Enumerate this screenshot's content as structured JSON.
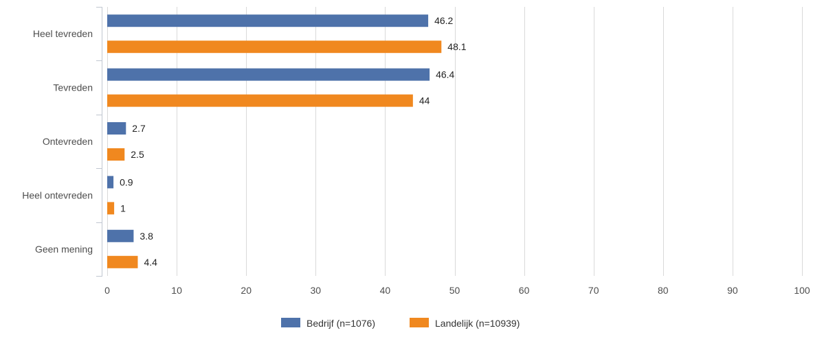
{
  "chart_data": {
    "type": "bar",
    "orientation": "horizontal",
    "categories": [
      "Heel tevreden",
      "Tevreden",
      "Ontevreden",
      "Heel ontevreden",
      "Geen mening"
    ],
    "series": [
      {
        "name": "Bedrijf (n=1076)",
        "color": "#4e72aa",
        "values": [
          46.2,
          46.4,
          2.7,
          0.9,
          3.8
        ]
      },
      {
        "name": "Landelijk (n=10939)",
        "color": "#f0881f",
        "values": [
          48.1,
          44,
          2.5,
          1,
          4.4
        ]
      }
    ],
    "xlim": [
      0,
      100
    ],
    "ticks": [
      0,
      10,
      20,
      30,
      40,
      50,
      60,
      70,
      80,
      90,
      100
    ],
    "grid": true,
    "data_labels": true,
    "legend_position": "bottom-center"
  }
}
